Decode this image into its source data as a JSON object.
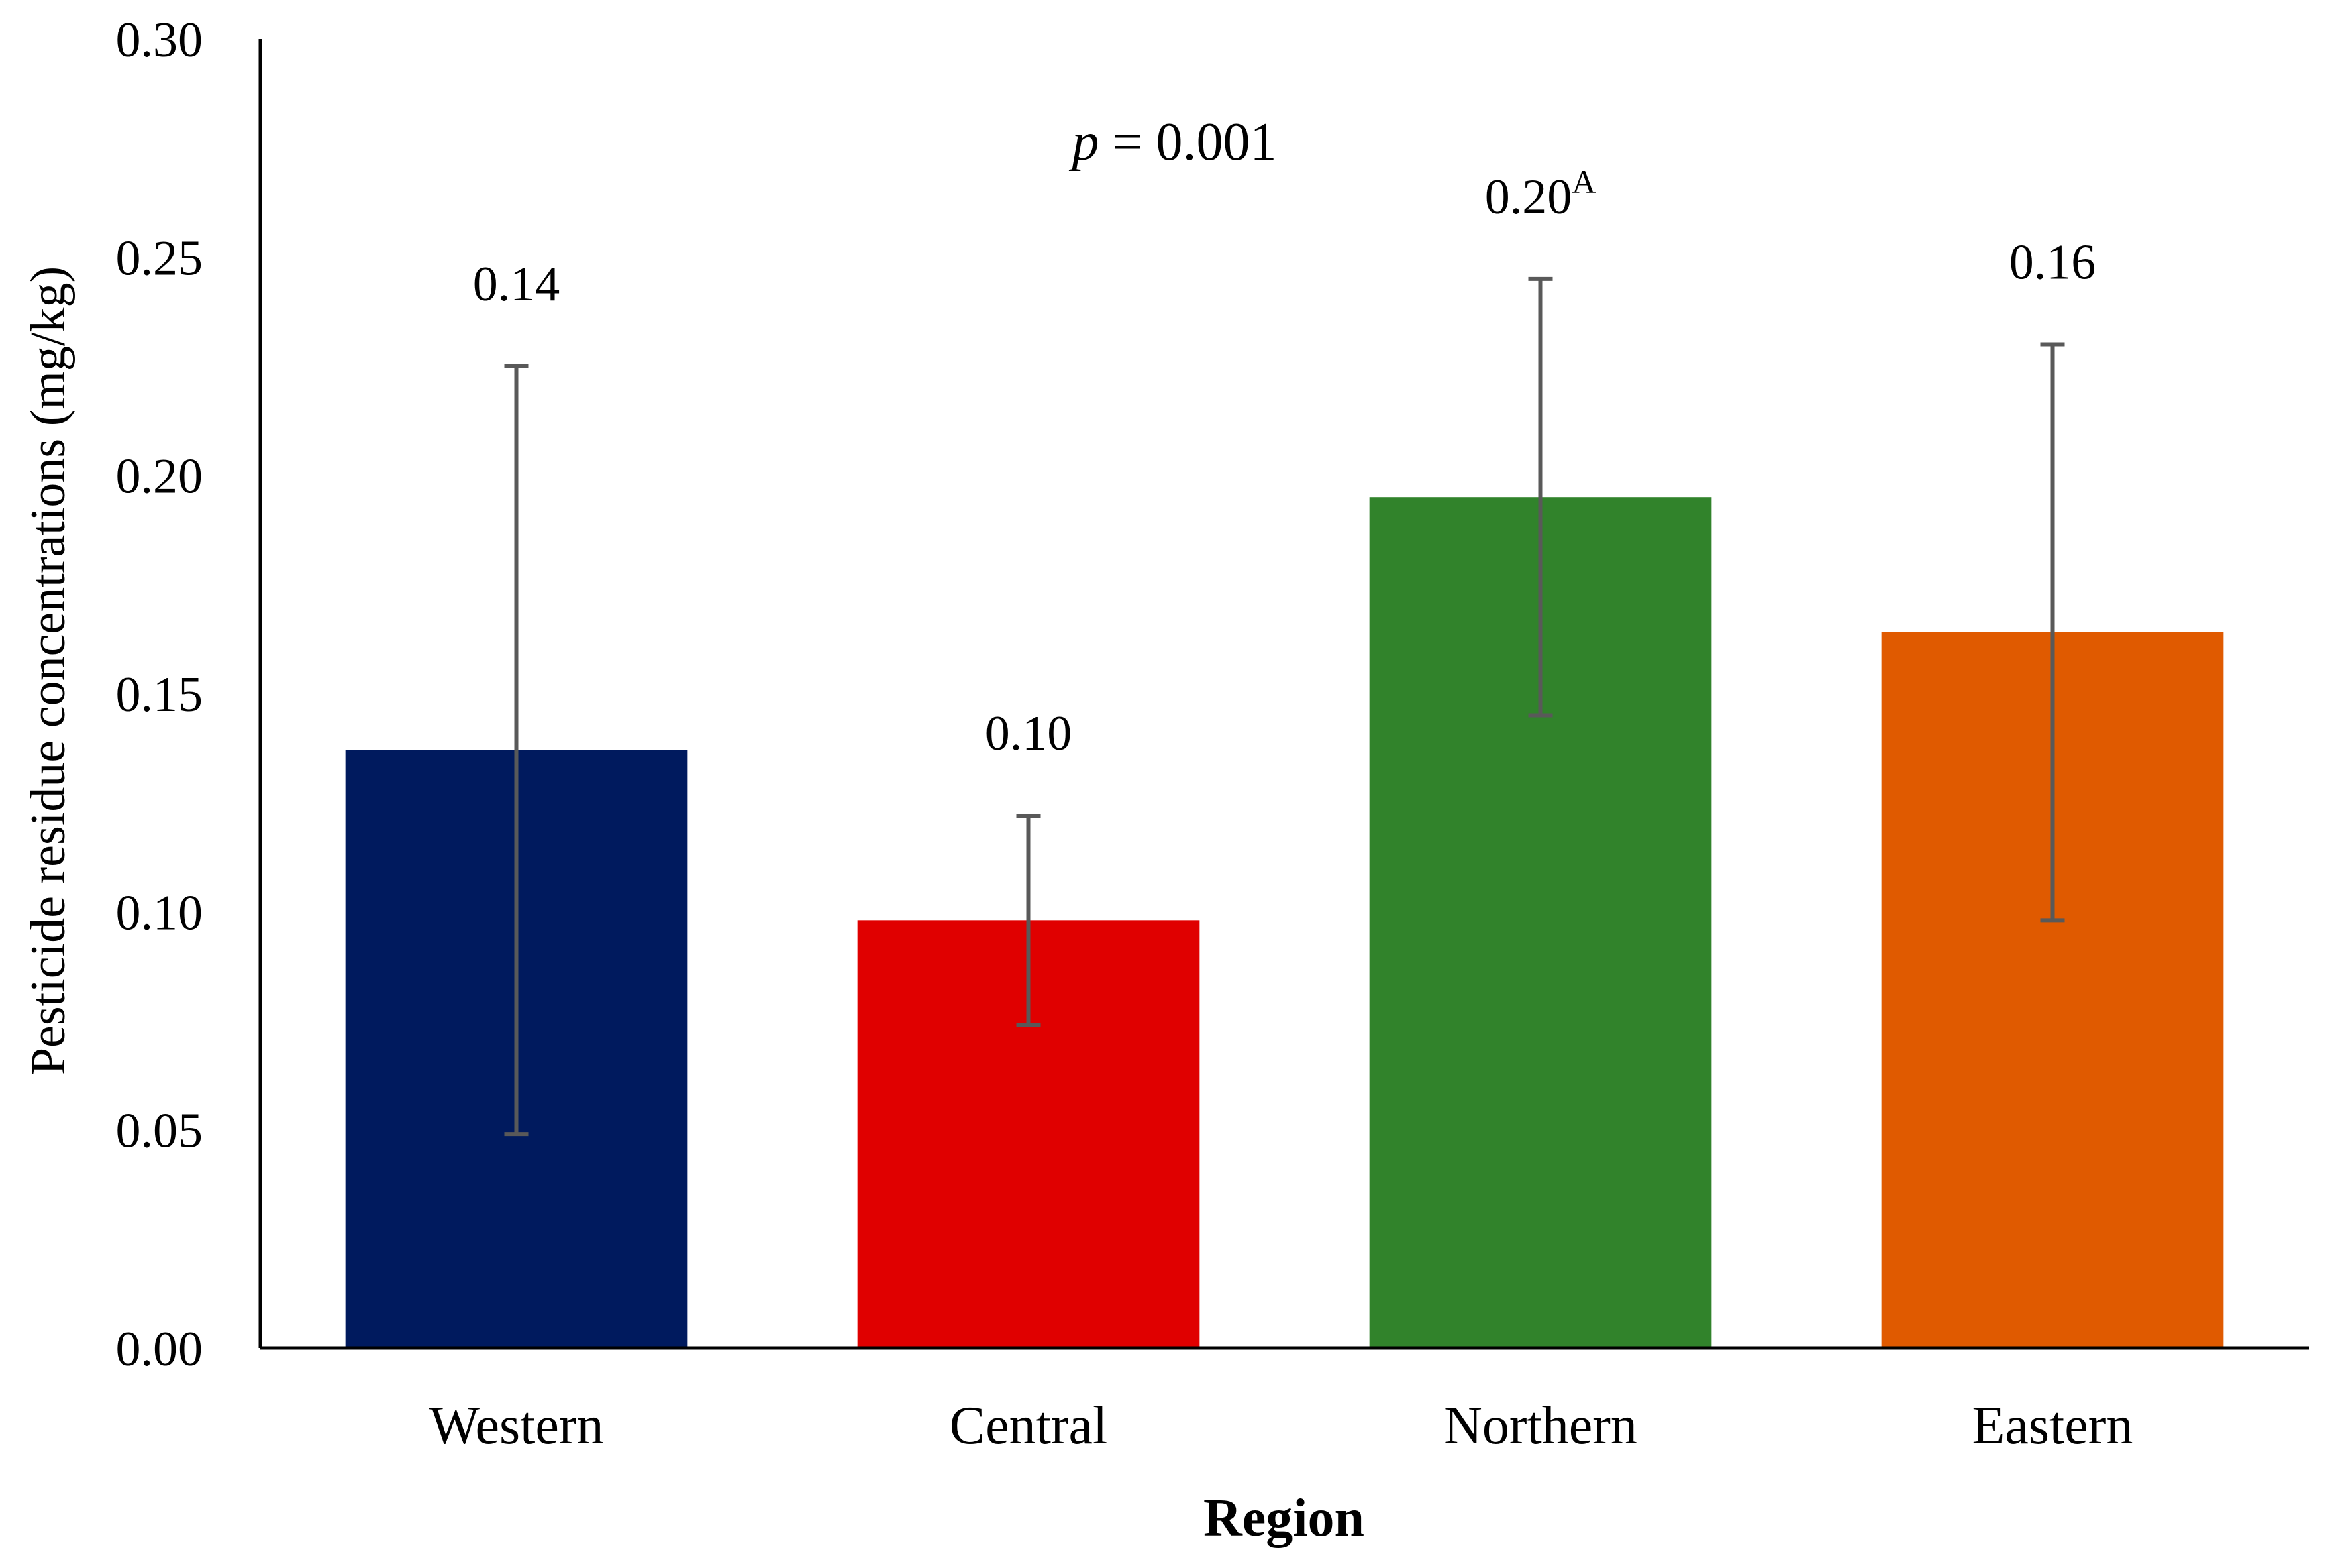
{
  "chart_data": {
    "type": "bar",
    "title": "",
    "xlabel": "Region",
    "ylabel": "Pesticide residue concentrations (mg/kg)",
    "ylim": [
      0,
      0.3
    ],
    "yticks": [
      0.0,
      0.05,
      0.1,
      0.15,
      0.2,
      0.25,
      0.3
    ],
    "ytick_labels": [
      "0.00",
      "0.05",
      "0.10",
      "0.15",
      "0.20",
      "0.25",
      "0.30"
    ],
    "grid": false,
    "categories": [
      "Western",
      "Central",
      "Northern",
      "Eastern"
    ],
    "values": [
      0.137,
      0.098,
      0.195,
      0.164
    ],
    "error_low": [
      0.049,
      0.074,
      0.145,
      0.098
    ],
    "error_high": [
      0.225,
      0.122,
      0.245,
      0.23
    ],
    "data_labels": [
      "0.14",
      "0.10",
      "0.20",
      "0.16"
    ],
    "data_label_superscripts": [
      "",
      "",
      "A",
      ""
    ],
    "colors": [
      "#001a5e",
      "#e00000",
      "#31832b",
      "#e05a00"
    ],
    "error_bar_color": "#595959",
    "annotation": {
      "p_symbol": "p",
      "p_text": " = 0.001"
    }
  }
}
